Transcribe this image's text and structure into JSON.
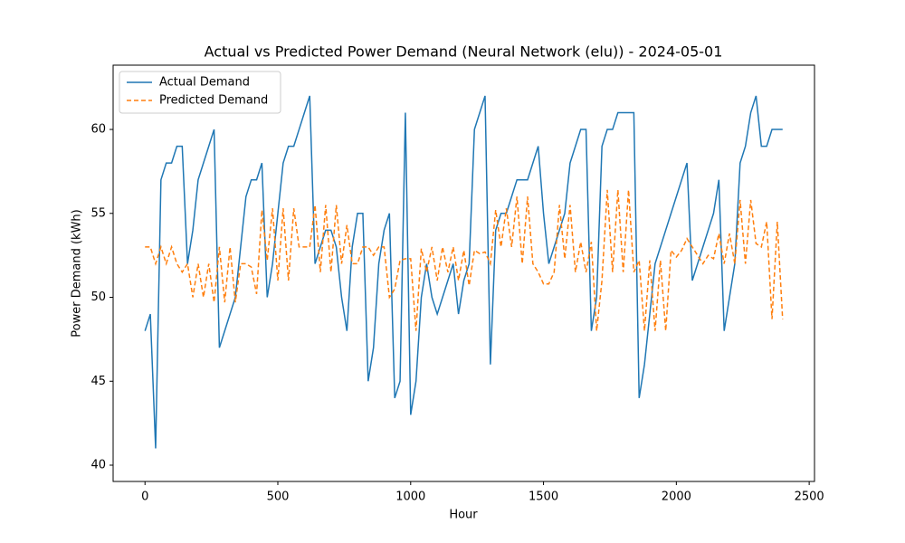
{
  "chart_data": {
    "type": "line",
    "title": "Actual vs Predicted Power Demand (Neural Network (elu)) - 2024-05-01",
    "xlabel": "Hour",
    "ylabel": "Power Demand (kWh)",
    "x": [
      0,
      20,
      40,
      60,
      80,
      100,
      120,
      140,
      160,
      180,
      200,
      220,
      240,
      260,
      280,
      300,
      320,
      340,
      360,
      380,
      400,
      420,
      440,
      460,
      480,
      500,
      520,
      540,
      560,
      580,
      600,
      620,
      640,
      660,
      680,
      700,
      720,
      740,
      760,
      780,
      800,
      820,
      840,
      860,
      880,
      900,
      920,
      940,
      960,
      980,
      1000,
      1020,
      1040,
      1060,
      1080,
      1100,
      1120,
      1140,
      1160,
      1180,
      1200,
      1220,
      1240,
      1260,
      1280,
      1300,
      1320,
      1340,
      1360,
      1380,
      1400,
      1420,
      1440,
      1460,
      1480,
      1500,
      1520,
      1540,
      1560,
      1580,
      1600,
      1620,
      1640,
      1660,
      1680,
      1700,
      1720,
      1740,
      1760,
      1780,
      1800,
      1820,
      1840,
      1860,
      1880,
      1900,
      1920,
      1940,
      1960,
      1980,
      2000,
      2020,
      2040,
      2060,
      2080,
      2100,
      2120,
      2140,
      2160,
      2180,
      2200,
      2220,
      2240,
      2260,
      2280,
      2300,
      2320,
      2340,
      2360,
      2380,
      2400
    ],
    "series": [
      {
        "name": "Actual Demand",
        "color": "#1f77b4",
        "dash": false,
        "values": [
          48,
          49,
          41,
          57,
          58,
          58,
          59,
          59,
          52,
          54,
          57,
          58,
          59,
          60,
          47,
          48,
          49,
          50,
          53,
          56,
          57,
          57,
          58,
          50,
          52,
          55,
          58,
          59,
          59,
          60,
          61,
          62,
          52,
          53,
          54,
          54,
          53,
          50,
          48,
          53,
          55,
          55,
          45,
          47,
          52,
          54,
          55,
          44,
          45,
          61,
          43,
          45,
          50,
          52,
          50,
          49,
          50,
          51,
          52,
          49,
          51,
          52,
          60,
          61,
          62,
          46,
          54,
          55,
          55,
          56,
          57,
          57,
          57,
          58,
          59,
          55,
          52,
          53,
          54,
          55,
          58,
          59,
          60,
          60,
          48,
          50,
          59,
          60,
          60,
          61,
          61,
          61,
          61,
          44,
          46,
          49,
          52,
          53,
          54,
          55,
          56,
          57,
          58,
          51,
          52,
          53,
          54,
          55,
          57,
          48,
          50,
          52,
          58,
          59,
          61,
          62,
          59,
          59,
          60,
          60,
          60
        ]
      },
      {
        "name": "Predicted Demand",
        "color": "#ff7f0e",
        "dash": true,
        "values": [
          53,
          53,
          52,
          53,
          52,
          53,
          52,
          51.5,
          52,
          50,
          52,
          50,
          52,
          49.7,
          53,
          49.7,
          53,
          49.7,
          52,
          52,
          51.8,
          50.2,
          55.2,
          52.2,
          55.3,
          51,
          55.3,
          51,
          55.3,
          53,
          53,
          53,
          55.5,
          51.5,
          55.5,
          51.5,
          55.5,
          52,
          54.3,
          52,
          52,
          53,
          53,
          52.5,
          53,
          53,
          50,
          50.5,
          52.2,
          52.3,
          52.3,
          48,
          52.9,
          51.5,
          53,
          51,
          53,
          51.5,
          53,
          51,
          52.8,
          50.7,
          52.8,
          52.6,
          52.7,
          52,
          55.2,
          53,
          55.3,
          53,
          56,
          52,
          56,
          52,
          51.5,
          50.8,
          50.8,
          51.5,
          55.5,
          52.3,
          55.5,
          51.5,
          53.3,
          51.5,
          53.3,
          48,
          51,
          56.4,
          51.5,
          56.4,
          51.5,
          56.4,
          51.5,
          52.2,
          48,
          52.2,
          48,
          52.2,
          48,
          52.8,
          52.4,
          52.8,
          53.5,
          53,
          52.5,
          52,
          52.5,
          52.3,
          53.8,
          52,
          53.8,
          52,
          55.8,
          52,
          55.8,
          53.2,
          53,
          54.5,
          48.7,
          54.5,
          48.7
        ]
      }
    ],
    "xlim": [
      -120,
      2520
    ],
    "ylim": [
      39.03,
      63.83
    ],
    "xticks": [
      0,
      500,
      1000,
      1500,
      2000,
      2500
    ],
    "yticks": [
      40,
      45,
      50,
      55,
      60
    ],
    "grid": false,
    "legend": "upper left"
  }
}
